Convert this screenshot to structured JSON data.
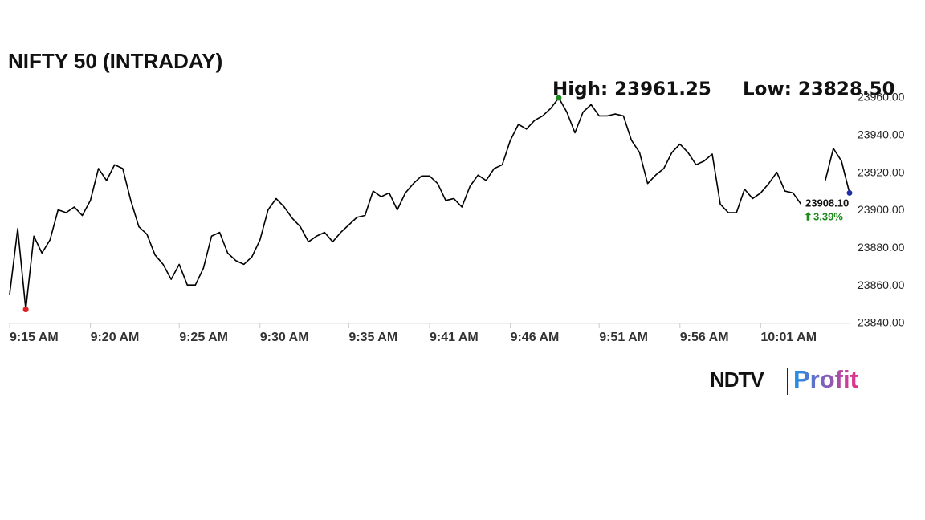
{
  "chart_data": {
    "type": "line",
    "title": "NIFTY 50 (INTRADAY)",
    "annotations": [
      "High: 23961.25",
      "Low: 23828.50"
    ],
    "last_label": "23908.10",
    "change_label": "3.39%",
    "logo": [
      "NDTV",
      "Profit"
    ],
    "color": "#000000",
    "high_color": "#1a8a1a",
    "low_color": "#e02020",
    "last_color": "#1f2fa8",
    "change_color": "#1a8a1a",
    "values": [
      23855,
      23890,
      23847,
      23886,
      23877,
      23884,
      23900,
      23898.5,
      23901.5,
      23897,
      23905,
      23922,
      23915.6,
      23924,
      23922,
      23905,
      23891,
      23887,
      23876,
      23871,
      23863,
      23871,
      23860,
      23860,
      23869,
      23886,
      23888,
      23877,
      23873,
      23871,
      23875,
      23884,
      23900,
      23906,
      23901.5,
      23895.5,
      23891,
      23883,
      23886,
      23888,
      23883,
      23888,
      23892,
      23896,
      23897,
      23910,
      23907,
      23909,
      23900,
      23909,
      23914,
      23918,
      23918,
      23914,
      23905,
      23906,
      23901.5,
      23912.5,
      23918.5,
      23915.6,
      23922,
      23924,
      23937,
      23945.5,
      23943,
      23947.6,
      23950,
      23954,
      23959.6,
      23952,
      23941,
      23952,
      23956,
      23950,
      23950,
      23951,
      23950,
      23937,
      23930.5,
      23914,
      23918.5,
      23922,
      23930.5,
      23935,
      23930.5,
      23924,
      23926,
      23929.7,
      23903,
      23898.5,
      23898.5,
      23911,
      23906,
      23909,
      23914,
      23920,
      23910,
      23909,
      23903,
      null,
      null,
      23915.6,
      23932.7,
      23926,
      23909
    ],
    "xlim": [
      0,
      104
    ],
    "xticks": [
      {
        "value": 0,
        "label": "9:15 AM"
      },
      {
        "value": 10,
        "label": "9:20 AM"
      },
      {
        "value": 21,
        "label": "9:25 AM"
      },
      {
        "value": 31,
        "label": "9:30 AM"
      },
      {
        "value": 42,
        "label": "9:35 AM"
      },
      {
        "value": 52,
        "label": "9:41 AM"
      },
      {
        "value": 62,
        "label": "9:46 AM"
      },
      {
        "value": 73,
        "label": "9:51 AM"
      },
      {
        "value": 83,
        "label": "9:56 AM"
      },
      {
        "value": 93,
        "label": "10:01 AM"
      }
    ],
    "ylim": [
      23840,
      23960
    ],
    "yticks": [
      {
        "value": 23840,
        "label": "23840.00"
      },
      {
        "value": 23860,
        "label": "23860.00"
      },
      {
        "value": 23880,
        "label": "23880.00"
      },
      {
        "value": 23900,
        "label": "23900.00"
      },
      {
        "value": 23920,
        "label": "23920.00"
      },
      {
        "value": 23940,
        "label": "23940.00"
      },
      {
        "value": 23960,
        "label": "23960.00"
      }
    ],
    "grid": false
  }
}
